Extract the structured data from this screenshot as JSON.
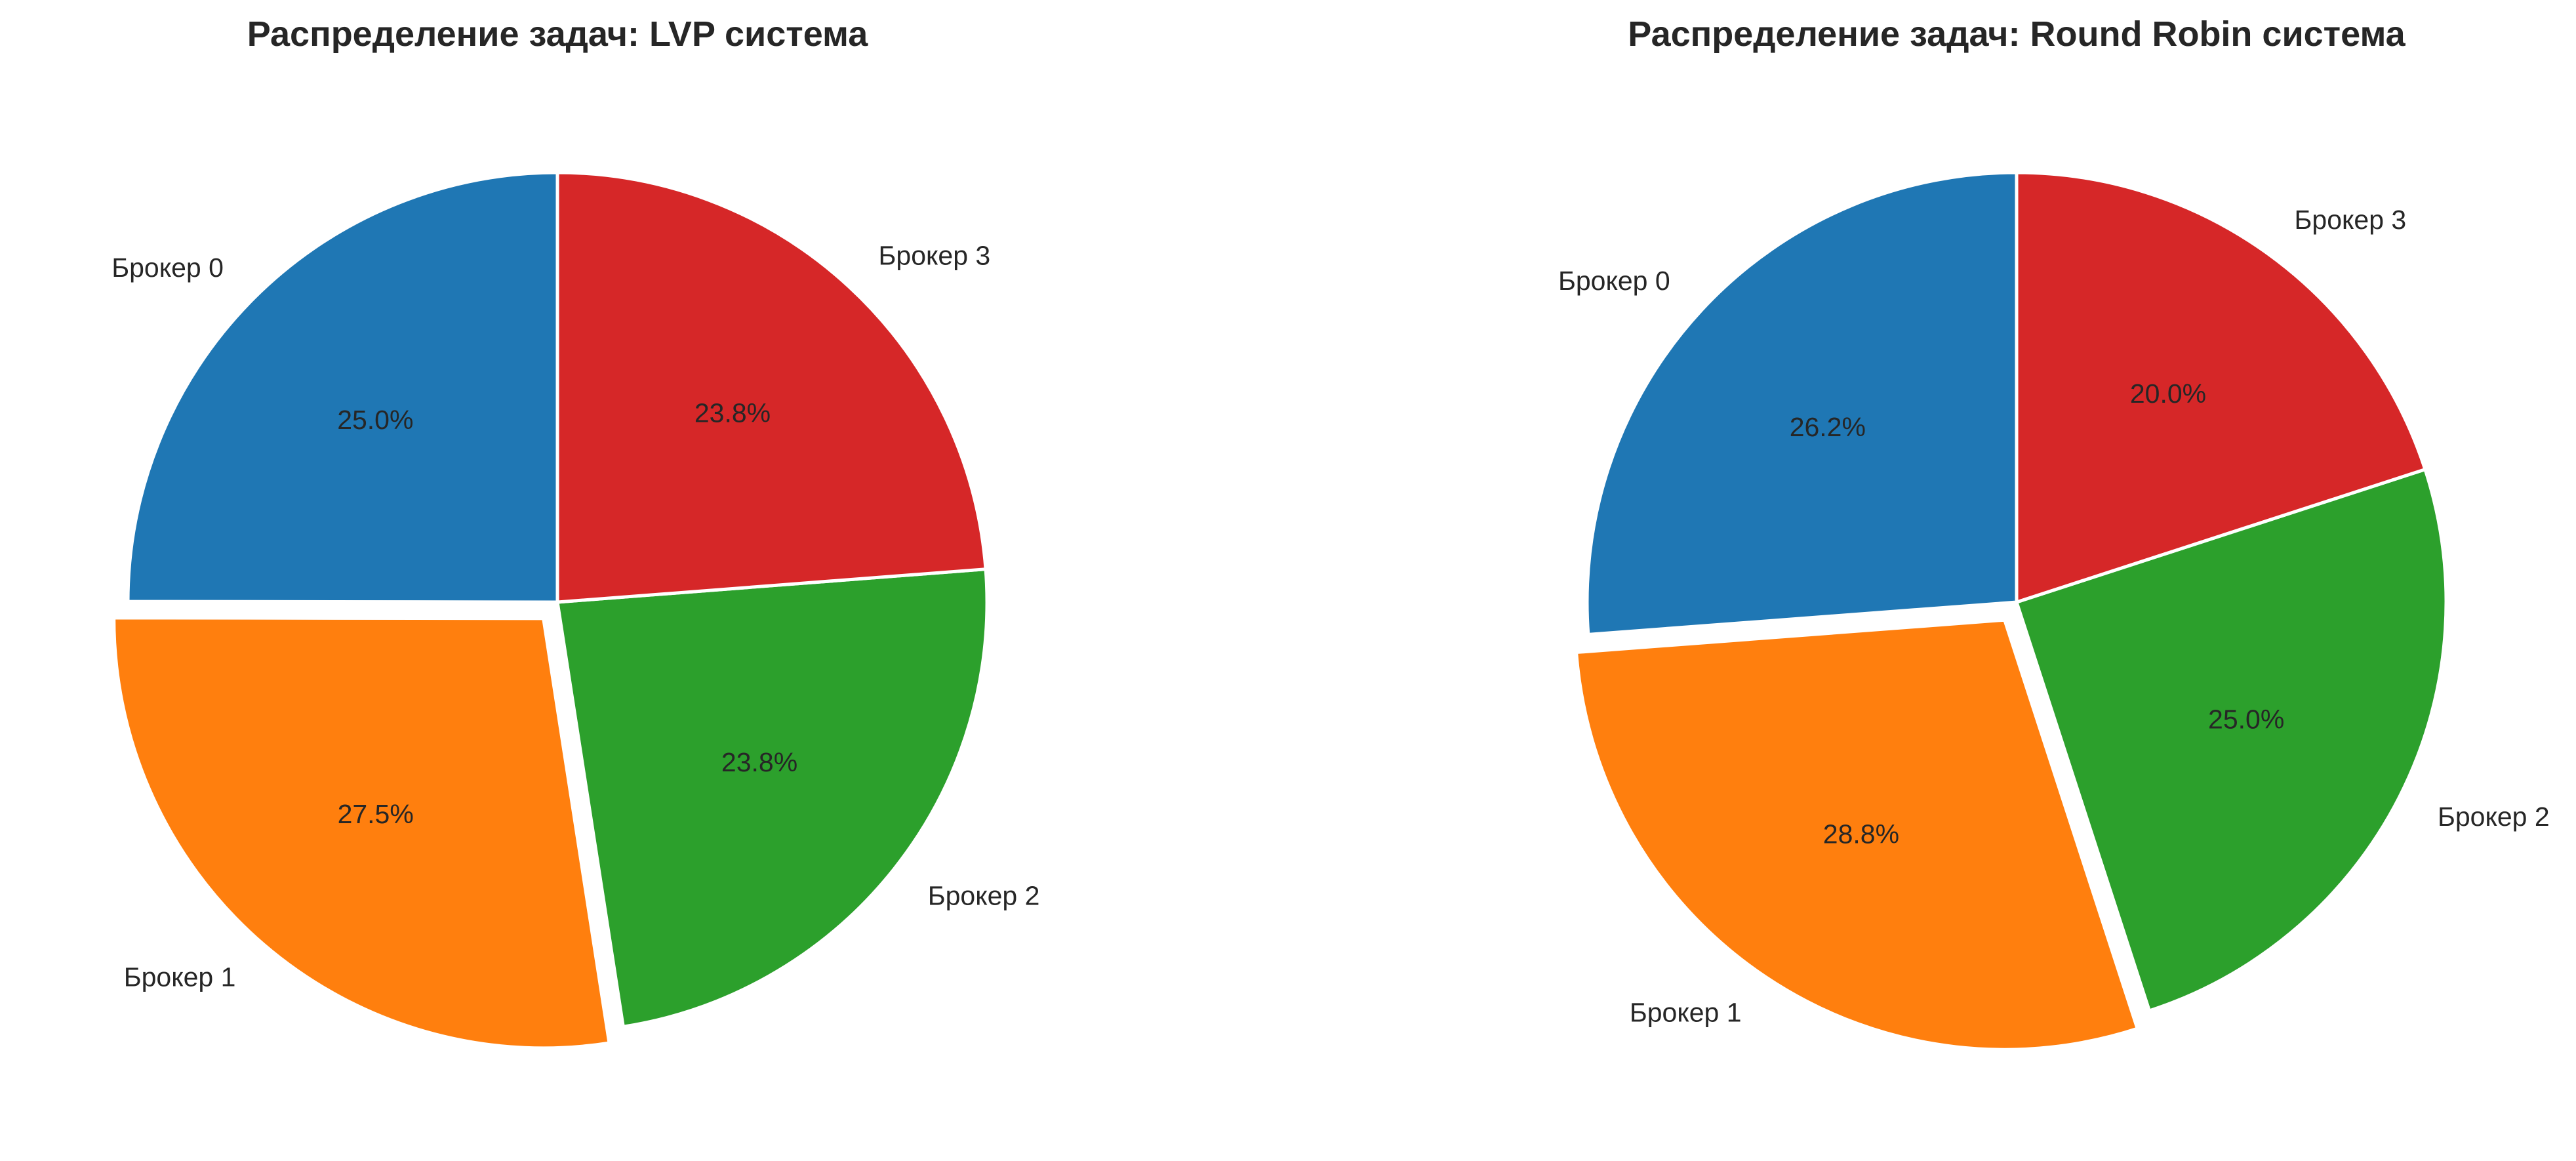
{
  "colors": {
    "background": "#ffffff",
    "text": "#262626",
    "edge": "#ffffff"
  },
  "chart_data": [
    {
      "type": "pie",
      "title": "Распределение задач: LVP система",
      "categories": [
        "Брокер 0",
        "Брокер 1",
        "Брокер 2",
        "Брокер 3"
      ],
      "values": [
        25.0,
        27.5,
        23.8,
        23.8
      ],
      "percent_labels": [
        "25.0%",
        "27.5%",
        "23.8%",
        "23.8%"
      ],
      "colors": [
        "#1f77b4",
        "#ff7f0e",
        "#2ca02c",
        "#d62728"
      ],
      "explode": [
        0,
        0.05,
        0,
        0
      ],
      "start_angle_deg": 90,
      "direction": "counterclockwise",
      "legend": "none"
    },
    {
      "type": "pie",
      "title": "Распределение задач: Round Robin система",
      "categories": [
        "Брокер 0",
        "Брокер 1",
        "Брокер 2",
        "Брокер 3"
      ],
      "values": [
        26.2,
        28.8,
        25.0,
        20.0
      ],
      "percent_labels": [
        "26.2%",
        "28.8%",
        "25.0%",
        "20.0%"
      ],
      "colors": [
        "#1f77b4",
        "#ff7f0e",
        "#2ca02c",
        "#d62728"
      ],
      "explode": [
        0,
        0.05,
        0,
        0
      ],
      "start_angle_deg": 90,
      "direction": "counterclockwise",
      "legend": "none"
    }
  ]
}
